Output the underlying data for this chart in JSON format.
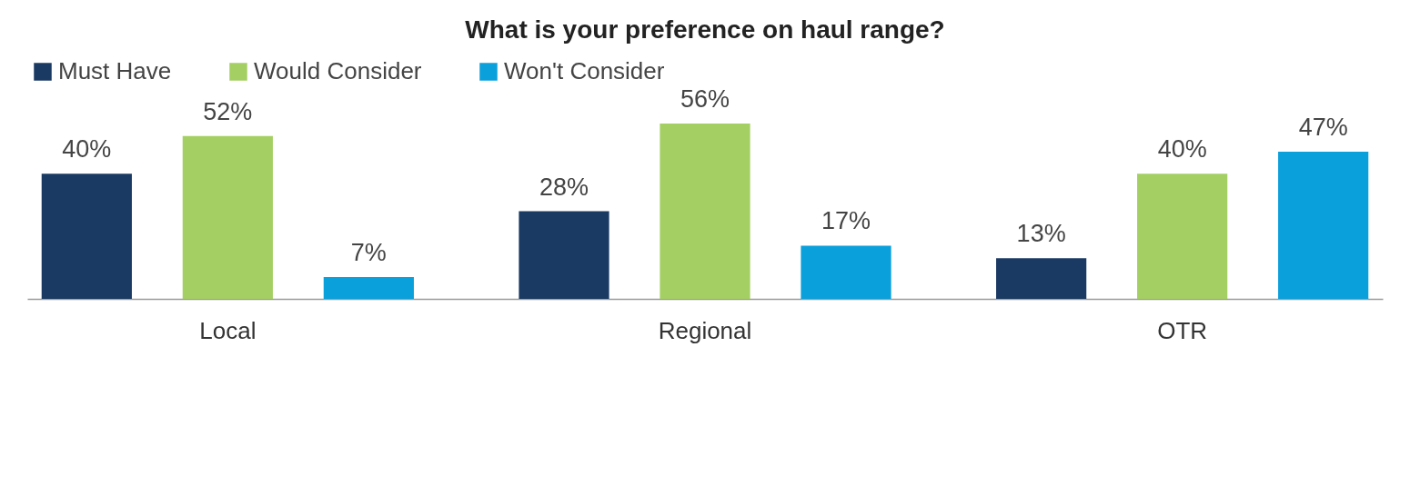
{
  "chart_data": {
    "type": "bar",
    "title": "What is your preference on haul range?",
    "categories": [
      "Local",
      "Regional",
      "OTR"
    ],
    "series": [
      {
        "name": "Must Have",
        "color": "#1a3a63",
        "values": [
          40,
          28,
          13
        ],
        "value_labels": [
          "40%",
          "28%",
          "13%"
        ]
      },
      {
        "name": "Would Consider",
        "color": "#a4cf62",
        "values": [
          52,
          56,
          40
        ],
        "value_labels": [
          "52%",
          "56%",
          "40%"
        ]
      },
      {
        "name": "Won't Consider",
        "color": "#0aa0dc",
        "values": [
          7,
          17,
          47
        ],
        "value_labels": [
          "7%",
          "17%",
          "47%"
        ]
      }
    ],
    "legend": "top",
    "tick_labels": "x"
  }
}
